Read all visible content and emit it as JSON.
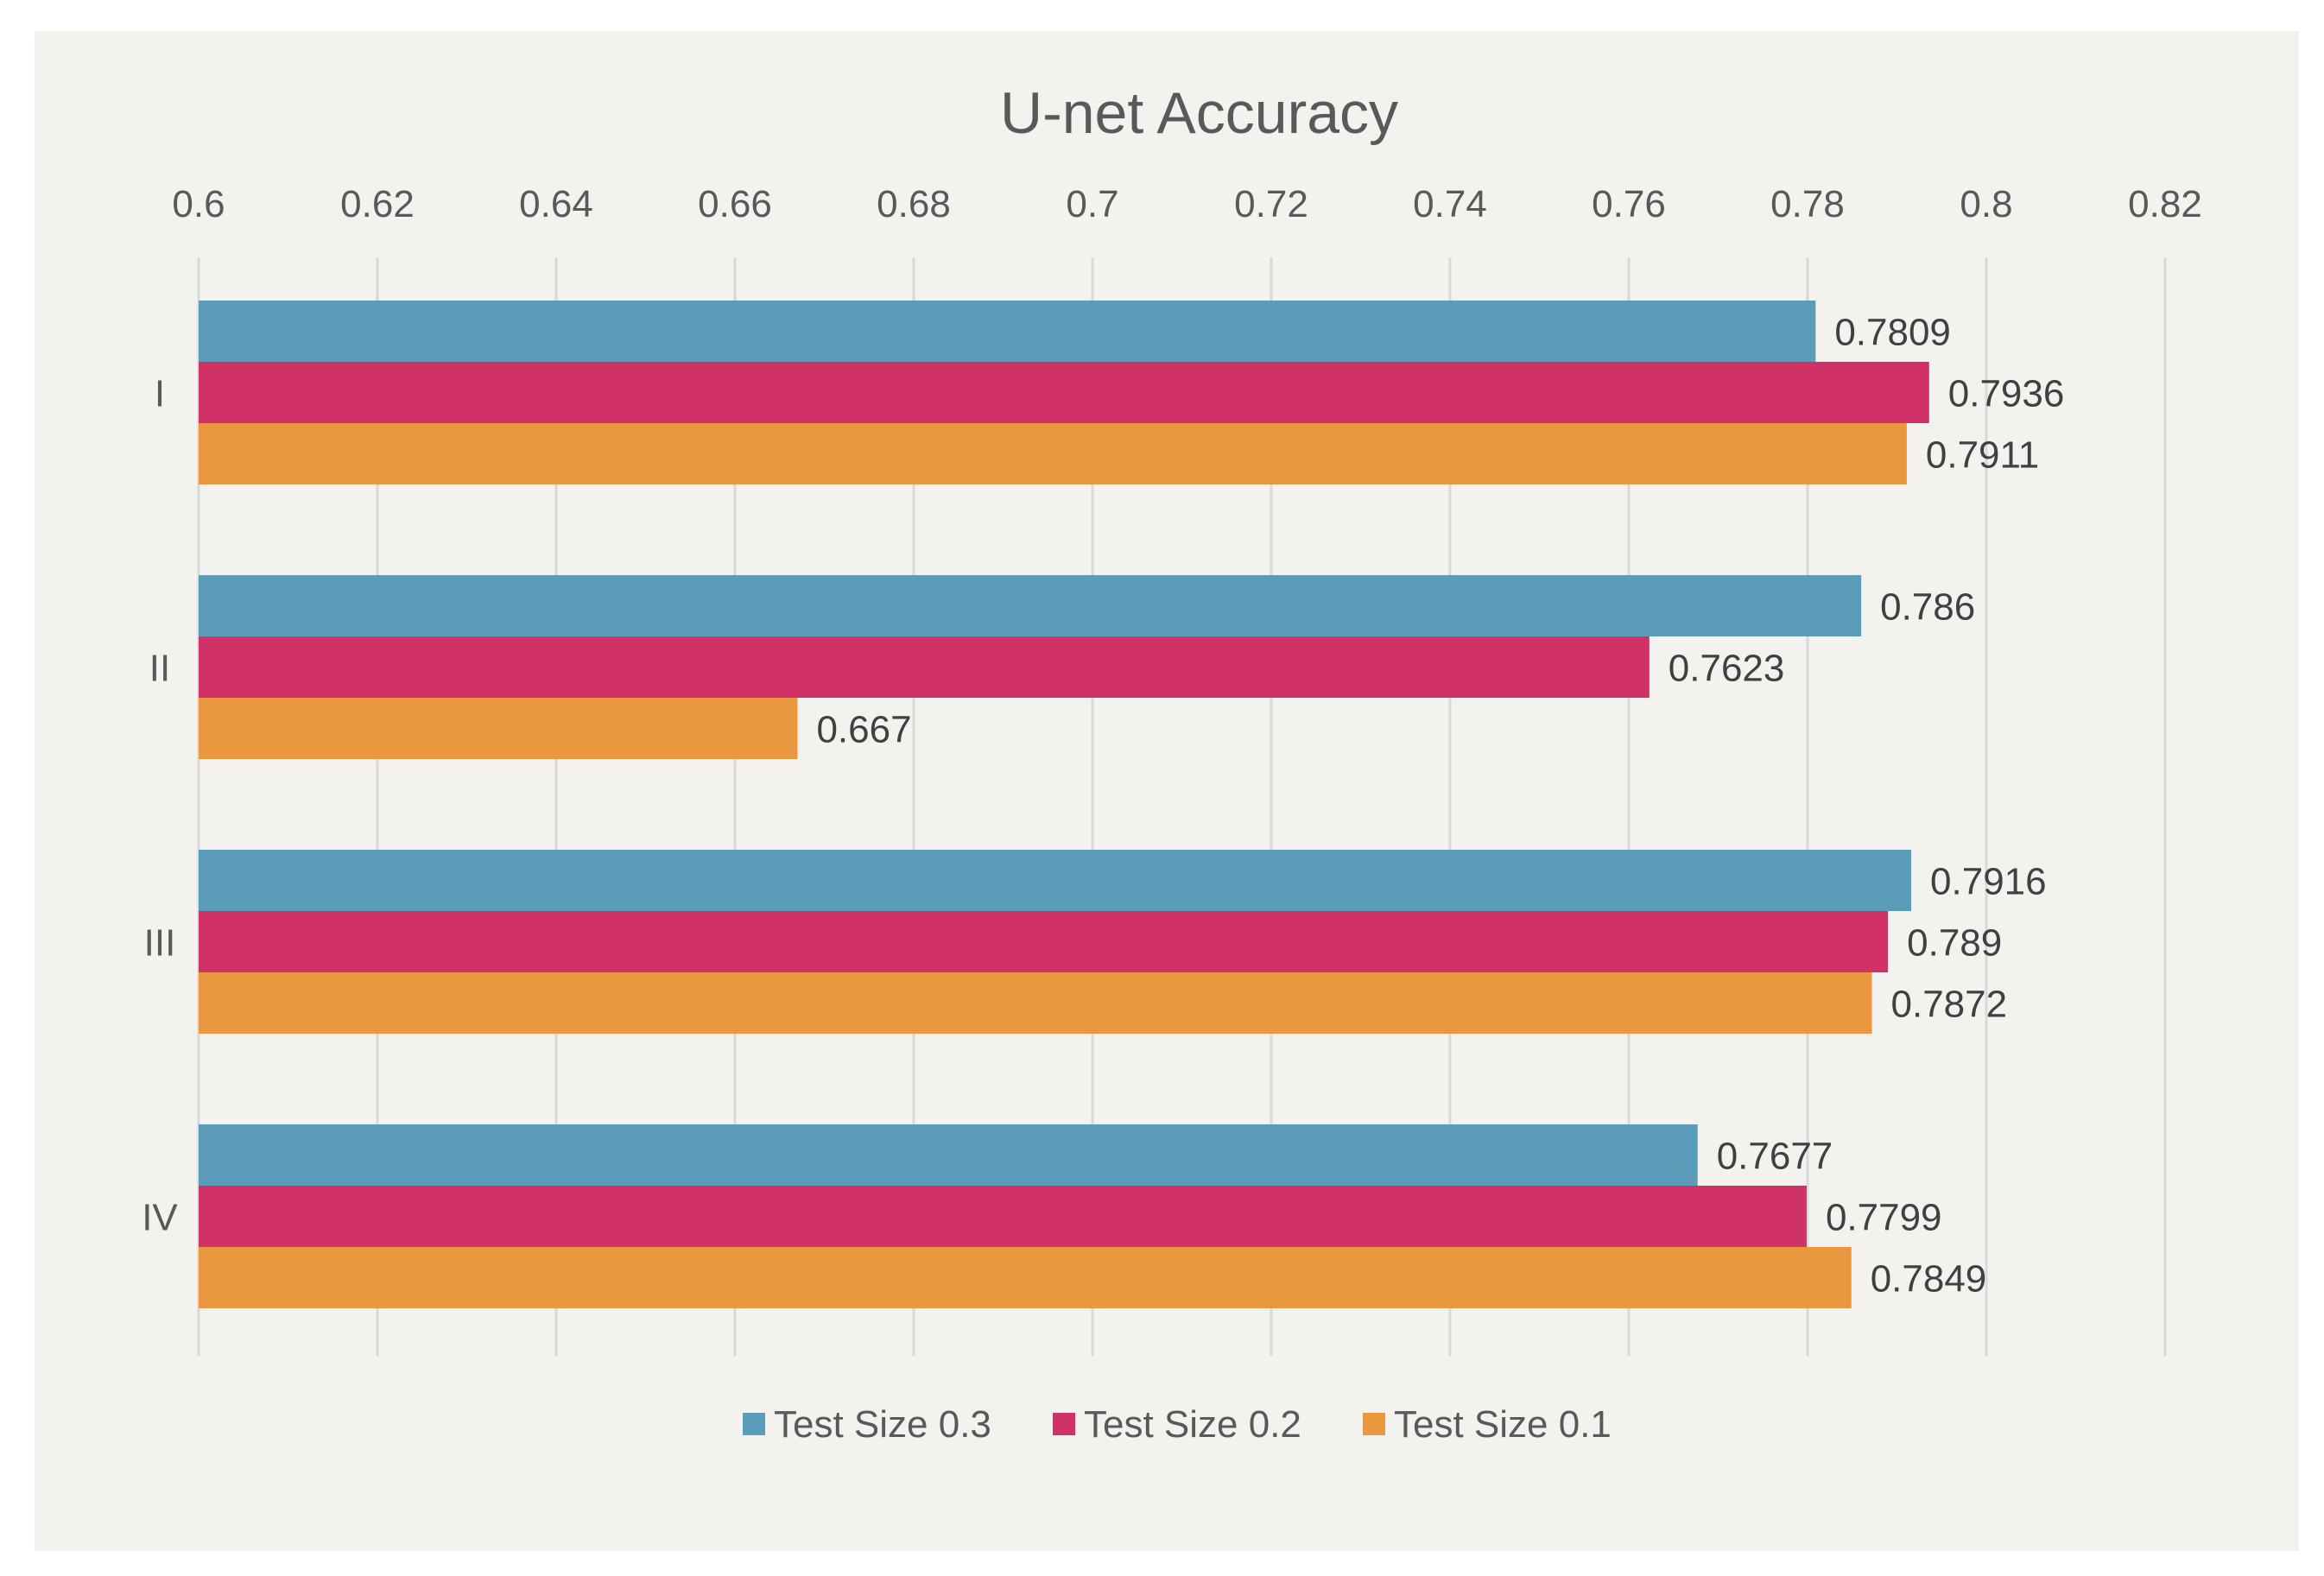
{
  "chart_data": {
    "type": "bar",
    "orientation": "horizontal",
    "title": "U-net Accuracy",
    "xlabel": "",
    "ylabel": "",
    "categories": [
      "I",
      "II",
      "III",
      "IV"
    ],
    "series": [
      {
        "name": "Test Size 0.3",
        "color": "#5b9cb8",
        "values": [
          0.7809,
          0.786,
          0.7916,
          0.7677
        ],
        "labels": [
          "0.7809",
          "0.786",
          "0.7916",
          "0.7677"
        ]
      },
      {
        "name": "Test Size 0.2",
        "color": "#d03166",
        "values": [
          0.7936,
          0.7623,
          0.789,
          0.7799
        ],
        "labels": [
          "0.7936",
          "0.7623",
          "0.789",
          "0.7799"
        ]
      },
      {
        "name": "Test Size 0.1",
        "color": "#e99840",
        "values": [
          0.7911,
          0.667,
          0.7872,
          0.7849
        ],
        "labels": [
          "0.7911",
          "0.667",
          "0.7872",
          "0.7849"
        ]
      }
    ],
    "xlim": [
      0.6,
      0.82
    ],
    "ticks": [
      0.6,
      0.62,
      0.64,
      0.66,
      0.68,
      0.7,
      0.72,
      0.74,
      0.76,
      0.78,
      0.8,
      0.82
    ],
    "tick_labels": [
      "0.6",
      "0.62",
      "0.64",
      "0.66",
      "0.68",
      "0.7",
      "0.72",
      "0.74",
      "0.76",
      "0.78",
      "0.8",
      "0.82"
    ],
    "grid": true,
    "axis_position": "top",
    "legend_position": "bottom-center"
  }
}
